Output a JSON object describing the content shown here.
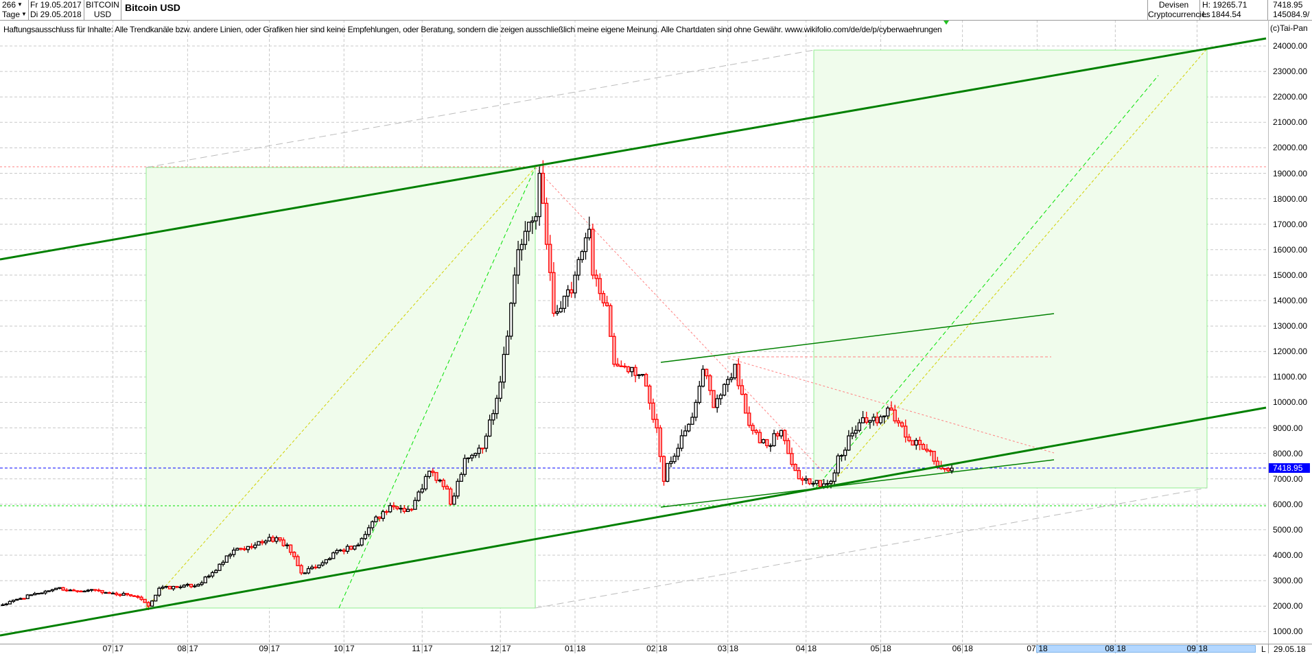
{
  "header": {
    "count_select": "266",
    "period_select": "Tage",
    "date_from": "Fr 19.05.2017",
    "date_to": "Di 29.05.2018",
    "symbol_line1": "BITCOIN",
    "symbol_line2": "USD",
    "title": "Bitcoin USD",
    "category_line1": "Devisen",
    "category_line2": "Cryptocurrencies",
    "high": "H: 19265.71",
    "low": "L: 1844.54",
    "last": "7418.95",
    "volume": "145084.9/"
  },
  "disclaimer": "Haftungsausschluss für Inhalte: Alle Trendkanäle bzw. andere Linien, oder Grafiken hier sind keine Empfehlungen, oder Beratung, sondern die zeigen ausschließlich meine eigene Meinung. Alle Chartdaten sind ohne Gewähr.  www.wikifolio.com/de/de/p/cyberwaehrungen",
  "copyright": "(c)Tai-Pan",
  "footer": {
    "scroll_button": "L",
    "end_date": "29.05.18"
  },
  "colors": {
    "up_body": "#ffffff",
    "up_border": "#000000",
    "down_body": "#ffb3b3",
    "down_border": "#ff0000",
    "channel": "#008000",
    "current_price": "#0000ff",
    "zone_fill": "#f0fcec",
    "zone_border": "#90ee90"
  },
  "chart_data": {
    "type": "candlestick",
    "title": "Bitcoin USD",
    "current_price": 7418.95,
    "high": 19265.71,
    "low": 1844.54,
    "ylim": [
      1000,
      24000
    ],
    "yticks": [
      "1000.00",
      "2000.00",
      "3000.00",
      "4000.00",
      "5000.00",
      "6000.00",
      "7000.00",
      "8000.00",
      "9000.00",
      "10000.00",
      "11000.00",
      "12000.00",
      "13000.00",
      "14000.00",
      "15000.00",
      "16000.00",
      "17000.00",
      "18000.00",
      "19000.00",
      "20000.00",
      "21000.00",
      "22000.00",
      "23000.00",
      "24000.00"
    ],
    "months": [
      {
        "date": "2017-07-01",
        "mm": "07",
        "yy": "17"
      },
      {
        "date": "2017-08-01",
        "mm": "08",
        "yy": "17"
      },
      {
        "date": "2017-09-01",
        "mm": "09",
        "yy": "17"
      },
      {
        "date": "2017-10-01",
        "mm": "10",
        "yy": "17"
      },
      {
        "date": "2017-11-01",
        "mm": "11",
        "yy": "17"
      },
      {
        "date": "2017-12-01",
        "mm": "12",
        "yy": "17"
      },
      {
        "date": "2018-01-01",
        "mm": "01",
        "yy": "18"
      },
      {
        "date": "2018-02-01",
        "mm": "02",
        "yy": "18"
      },
      {
        "date": "2018-03-01",
        "mm": "03",
        "yy": "18"
      },
      {
        "date": "2018-04-01",
        "mm": "04",
        "yy": "18"
      },
      {
        "date": "2018-05-01",
        "mm": "05",
        "yy": "18"
      },
      {
        "date": "2018-06-01",
        "mm": "06",
        "yy": "18"
      },
      {
        "date": "2018-07-01",
        "mm": "07",
        "yy": "18"
      },
      {
        "date": "2018-08-01",
        "mm": "08",
        "yy": "18"
      },
      {
        "date": "2018-09-01",
        "mm": "09",
        "yy": "18"
      }
    ],
    "approx_closes": [
      [
        "2017-05-19",
        2050
      ],
      [
        "2017-05-26",
        2300
      ],
      [
        "2017-06-02",
        2500
      ],
      [
        "2017-06-09",
        2700
      ],
      [
        "2017-06-16",
        2600
      ],
      [
        "2017-06-23",
        2650
      ],
      [
        "2017-06-30",
        2500
      ],
      [
        "2017-07-07",
        2450
      ],
      [
        "2017-07-12",
        2350
      ],
      [
        "2017-07-17",
        2000
      ],
      [
        "2017-07-20",
        2700
      ],
      [
        "2017-07-28",
        2750
      ],
      [
        "2017-08-04",
        2850
      ],
      [
        "2017-08-11",
        3400
      ],
      [
        "2017-08-18",
        4200
      ],
      [
        "2017-08-25",
        4300
      ],
      [
        "2017-09-01",
        4700
      ],
      [
        "2017-09-08",
        4400
      ],
      [
        "2017-09-14",
        3300
      ],
      [
        "2017-09-22",
        3700
      ],
      [
        "2017-09-29",
        4200
      ],
      [
        "2017-10-06",
        4400
      ],
      [
        "2017-10-13",
        5500
      ],
      [
        "2017-10-20",
        5900
      ],
      [
        "2017-10-27",
        5800
      ],
      [
        "2017-11-03",
        7300
      ],
      [
        "2017-11-10",
        6600
      ],
      [
        "2017-11-13",
        6000
      ],
      [
        "2017-11-17",
        7800
      ],
      [
        "2017-11-24",
        8200
      ],
      [
        "2017-12-01",
        10800
      ],
      [
        "2017-12-07",
        15000
      ],
      [
        "2017-12-08",
        16000
      ],
      [
        "2017-12-15",
        17300
      ],
      [
        "2017-12-18",
        19000
      ],
      [
        "2017-12-22",
        13500
      ],
      [
        "2017-12-29",
        14300
      ],
      [
        "2018-01-05",
        16800
      ],
      [
        "2018-01-08",
        15000
      ],
      [
        "2018-01-12",
        13800
      ],
      [
        "2018-01-16",
        11500
      ],
      [
        "2018-01-19",
        11400
      ],
      [
        "2018-01-26",
        11100
      ],
      [
        "2018-02-01",
        9000
      ],
      [
        "2018-02-05",
        6900
      ],
      [
        "2018-02-06",
        7600
      ],
      [
        "2018-02-09",
        8200
      ],
      [
        "2018-02-16",
        10000
      ],
      [
        "2018-02-20",
        11300
      ],
      [
        "2018-02-23",
        9800
      ],
      [
        "2018-03-01",
        10900
      ],
      [
        "2018-03-05",
        11500
      ],
      [
        "2018-03-09",
        9100
      ],
      [
        "2018-03-16",
        8300
      ],
      [
        "2018-03-22",
        8900
      ],
      [
        "2018-03-29",
        7000
      ],
      [
        "2018-04-02",
        7000
      ],
      [
        "2018-04-06",
        6700
      ],
      [
        "2018-04-11",
        6900
      ],
      [
        "2018-04-13",
        7900
      ],
      [
        "2018-04-20",
        8900
      ],
      [
        "2018-04-24",
        9400
      ],
      [
        "2018-04-30",
        9200
      ],
      [
        "2018-05-04",
        9700
      ],
      [
        "2018-05-08",
        9200
      ],
      [
        "2018-05-11",
        8500
      ],
      [
        "2018-05-18",
        8100
      ],
      [
        "2018-05-23",
        7500
      ],
      [
        "2018-05-25",
        7400
      ],
      [
        "2018-05-29",
        7418.95
      ]
    ]
  }
}
